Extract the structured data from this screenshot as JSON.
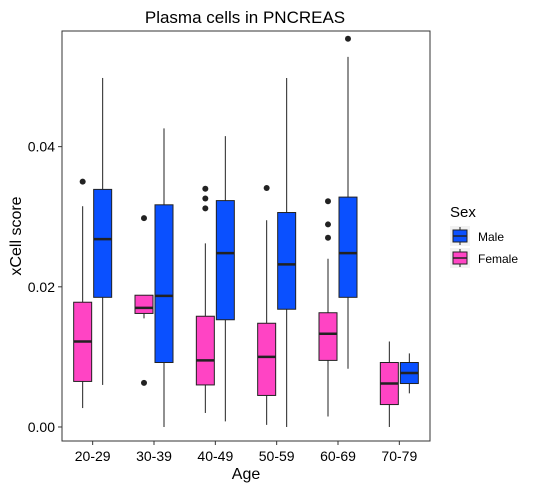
{
  "chart_data": {
    "type": "boxplot",
    "title": "Plasma cells in PNCREAS",
    "xlabel": "Age",
    "ylabel": "xCell score",
    "categories": [
      "20-29",
      "30-39",
      "40-49",
      "50-59",
      "60-69",
      "70-79"
    ],
    "ylim": [
      -0.002,
      0.0565
    ],
    "yticks": [
      0.0,
      0.02,
      0.04
    ],
    "ytick_labels": [
      "0.00",
      "0.02",
      "0.04"
    ],
    "grid": false,
    "legend": {
      "title": "Sex",
      "position": "right"
    },
    "colors": {
      "Male": "#0a50ff",
      "Female": "#ff44c4"
    },
    "series": [
      {
        "name": "Female",
        "boxes": [
          {
            "category": "20-29",
            "min": 0.0027,
            "q1": 0.0065,
            "median": 0.0122,
            "q3": 0.0178,
            "max": 0.0315,
            "outliers": [
              0.035
            ]
          },
          {
            "category": "30-39",
            "min": 0.0155,
            "q1": 0.0162,
            "median": 0.017,
            "q3": 0.0188,
            "max": 0.0188,
            "outliers": [
              0.0298,
              0.0063
            ]
          },
          {
            "category": "40-49",
            "min": 0.002,
            "q1": 0.006,
            "median": 0.0095,
            "q3": 0.0158,
            "max": 0.0262,
            "outliers": [
              0.034,
              0.0326,
              0.0312
            ]
          },
          {
            "category": "50-59",
            "min": 0.0003,
            "q1": 0.0045,
            "median": 0.01,
            "q3": 0.0148,
            "max": 0.0295,
            "outliers": [
              0.0341
            ]
          },
          {
            "category": "60-69",
            "min": 0.0015,
            "q1": 0.0095,
            "median": 0.0133,
            "q3": 0.0163,
            "max": 0.024,
            "outliers": [
              0.0322,
              0.0289,
              0.027
            ]
          },
          {
            "category": "70-79",
            "min": 0.0,
            "q1": 0.0032,
            "median": 0.0062,
            "q3": 0.0092,
            "max": 0.0122,
            "outliers": []
          }
        ]
      },
      {
        "name": "Male",
        "boxes": [
          {
            "category": "20-29",
            "min": 0.006,
            "q1": 0.0185,
            "median": 0.0268,
            "q3": 0.0339,
            "max": 0.0498,
            "outliers": []
          },
          {
            "category": "30-39",
            "min": 0.0,
            "q1": 0.0092,
            "median": 0.0187,
            "q3": 0.0317,
            "max": 0.0426,
            "outliers": []
          },
          {
            "category": "40-49",
            "min": 0.0008,
            "q1": 0.0153,
            "median": 0.0248,
            "q3": 0.0323,
            "max": 0.0415,
            "outliers": []
          },
          {
            "category": "50-59",
            "min": 0.0,
            "q1": 0.0168,
            "median": 0.0232,
            "q3": 0.0306,
            "max": 0.0498,
            "outliers": []
          },
          {
            "category": "60-69",
            "min": 0.0083,
            "q1": 0.0185,
            "median": 0.0248,
            "q3": 0.0328,
            "max": 0.0528,
            "outliers": [
              0.0554
            ]
          },
          {
            "category": "70-79",
            "min": 0.0048,
            "q1": 0.0062,
            "median": 0.0077,
            "q3": 0.0092,
            "max": 0.0105,
            "outliers": []
          }
        ]
      }
    ]
  }
}
